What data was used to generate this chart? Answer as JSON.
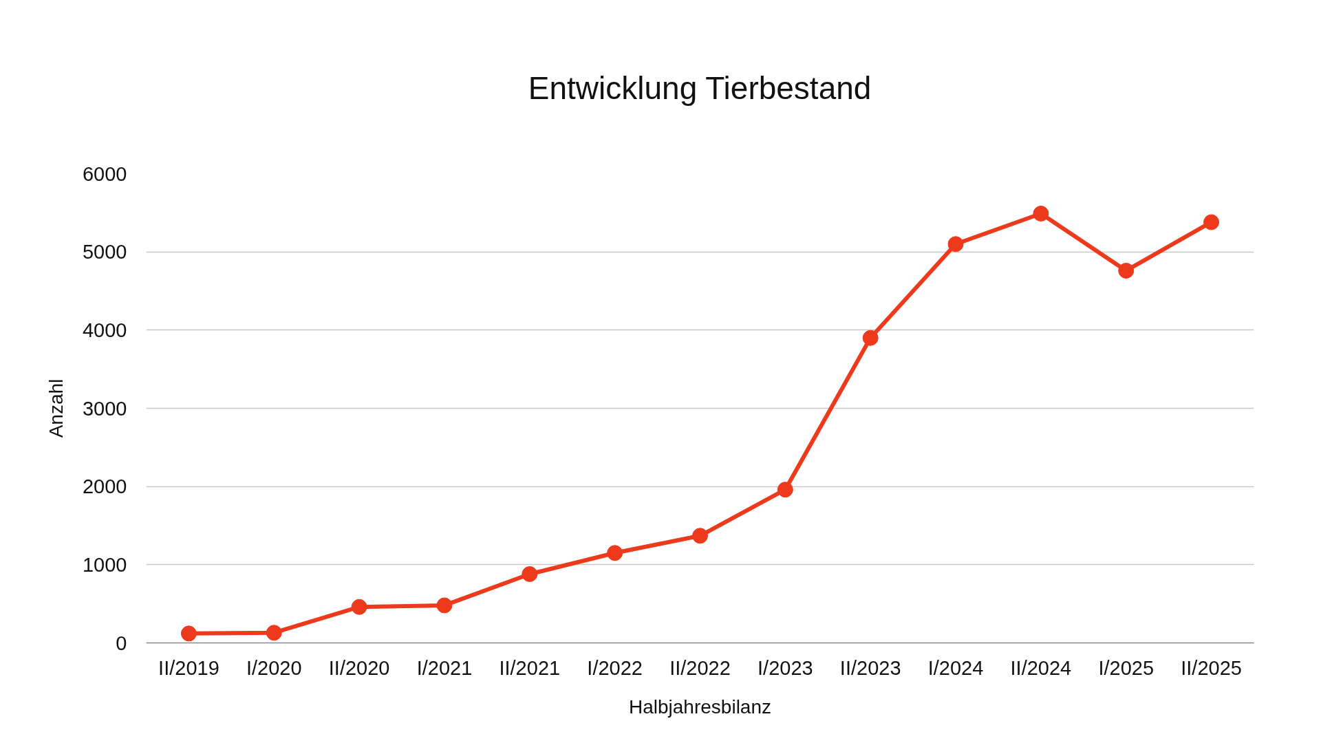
{
  "chart_data": {
    "type": "line",
    "title": "Entwicklung Tierbestand",
    "xlabel": "Halbjahresbilanz",
    "ylabel": "Anzahl",
    "categories": [
      "II/2019",
      "I/2020",
      "II/2020",
      "I/2021",
      "II/2021",
      "I/2022",
      "II/2022",
      "I/2023",
      "II/2023",
      "I/2024",
      "II/2024",
      "I/2025",
      "II/2025"
    ],
    "values": [
      120,
      130,
      460,
      480,
      880,
      1150,
      1370,
      1960,
      3900,
      5100,
      5490,
      4760,
      5380
    ],
    "color": "#ee3a1c",
    "ylim": [
      0,
      6000
    ],
    "yticks": [
      0,
      1000,
      2000,
      3000,
      4000,
      5000,
      6000
    ],
    "grid": "y",
    "marker": "circle",
    "line_style": "solid"
  }
}
